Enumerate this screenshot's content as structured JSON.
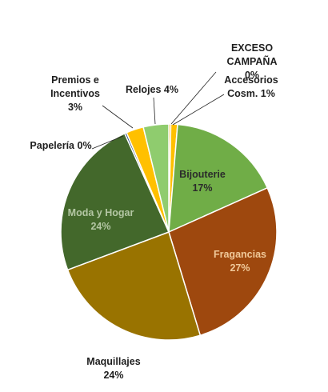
{
  "chart_data": {
    "type": "pie",
    "start_angle_deg": 0,
    "direction": "clockwise",
    "slices": [
      {
        "name": "EXCESO CAMPAÑA",
        "value": 0.3,
        "label": "0%",
        "color": "#f2a900",
        "label_lines": [
          "EXCESO",
          "CAMPAÑA",
          "0%"
        ]
      },
      {
        "name": "Accesorios Cosm.",
        "value": 1,
        "label": "1%",
        "color": "#ffc000",
        "label_lines": [
          "Accesorios",
          "Cosm. 1%"
        ]
      },
      {
        "name": "Bijouterie",
        "value": 17,
        "label": "17%",
        "color": "#70ad47",
        "label_lines": [
          "Bijouterie",
          "17%"
        ],
        "inside": true,
        "text_color": "#2b2b2b"
      },
      {
        "name": "Fragancias",
        "value": 27,
        "label": "27%",
        "color": "#9e480e",
        "label_lines": [
          "Fragancias",
          "27%"
        ],
        "inside": true,
        "text_color": "#f0c99a"
      },
      {
        "name": "Maquillajes",
        "value": 24,
        "label": "24%",
        "color": "#997300",
        "label_lines": [
          "Maquillajes",
          "24%"
        ]
      },
      {
        "name": "Moda y Hogar",
        "value": 24,
        "label": "24%",
        "color": "#43682b",
        "label_lines": [
          "Moda y Hogar",
          "24%"
        ],
        "inside": true,
        "text_color": "#b4c7a4"
      },
      {
        "name": "Papelería",
        "value": 0.3,
        "label": "0%",
        "color": "#264478",
        "label_lines": [
          "Papelería 0%"
        ]
      },
      {
        "name": "Premios e Incentivos",
        "value": 2.6,
        "label": "3%",
        "color": "#ffc000",
        "label_lines": [
          "Premios e",
          "Incentivos",
          "3%"
        ]
      },
      {
        "name": "Relojes",
        "value": 3.8,
        "label": "4%",
        "color": "#8fcc6e",
        "label_lines": [
          "Relojes 4%"
        ]
      }
    ]
  }
}
